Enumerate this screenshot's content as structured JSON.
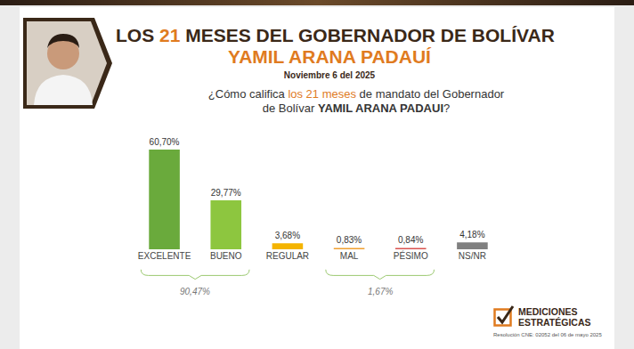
{
  "header": {
    "title": [
      {
        "text": "LOS "
      },
      {
        "text": "21",
        "style": "highlight"
      },
      {
        "text": " MESES DEL GOBERNADOR DE BOLÍVAR"
      }
    ],
    "subtitle": "YAMIL ARANA PADAUÍ",
    "date": "Noviembre 6 del 2025",
    "question": [
      [
        {
          "text": "¿Cómo califica "
        },
        {
          "text": "los 21 meses",
          "style": "highlight"
        },
        {
          "text": " de mandato del Gobernador"
        }
      ],
      [
        {
          "text": "de Bolívar "
        },
        {
          "text": "YAMIL ARANA PADAUI",
          "style": "bold"
        },
        {
          "text": "?"
        }
      ]
    ]
  },
  "chart_data": {
    "type": "bar",
    "categories": [
      "EXCELENTE",
      "BUENO",
      "REGULAR",
      "MAL",
      "PÉSIMO",
      "NS/NR"
    ],
    "values": [
      60.7,
      29.77,
      3.68,
      0.83,
      0.84,
      4.18
    ],
    "value_labels": [
      "60,70%",
      "29,77%",
      "3,68%",
      "0,83%",
      "0,84%",
      "4,18%"
    ],
    "colors": [
      "#6aaa3c",
      "#8dc63f",
      "#f4b400",
      "#f0a030",
      "#d9534f",
      "#808080"
    ],
    "ylim": [
      0,
      65
    ],
    "data_labels": true,
    "tick_labels": "x",
    "groups": [
      {
        "categories": [
          "EXCELENTE",
          "BUENO"
        ],
        "label": "90,47%"
      },
      {
        "categories": [
          "MAL",
          "PÉSIMO"
        ],
        "label": "1,67%"
      }
    ]
  },
  "footer": {
    "logo": [
      "MEDICIONES",
      "ESTRATÉGICAS"
    ],
    "resolution": "Resolución CNE: 02052 del 06 de mayo 2025"
  }
}
